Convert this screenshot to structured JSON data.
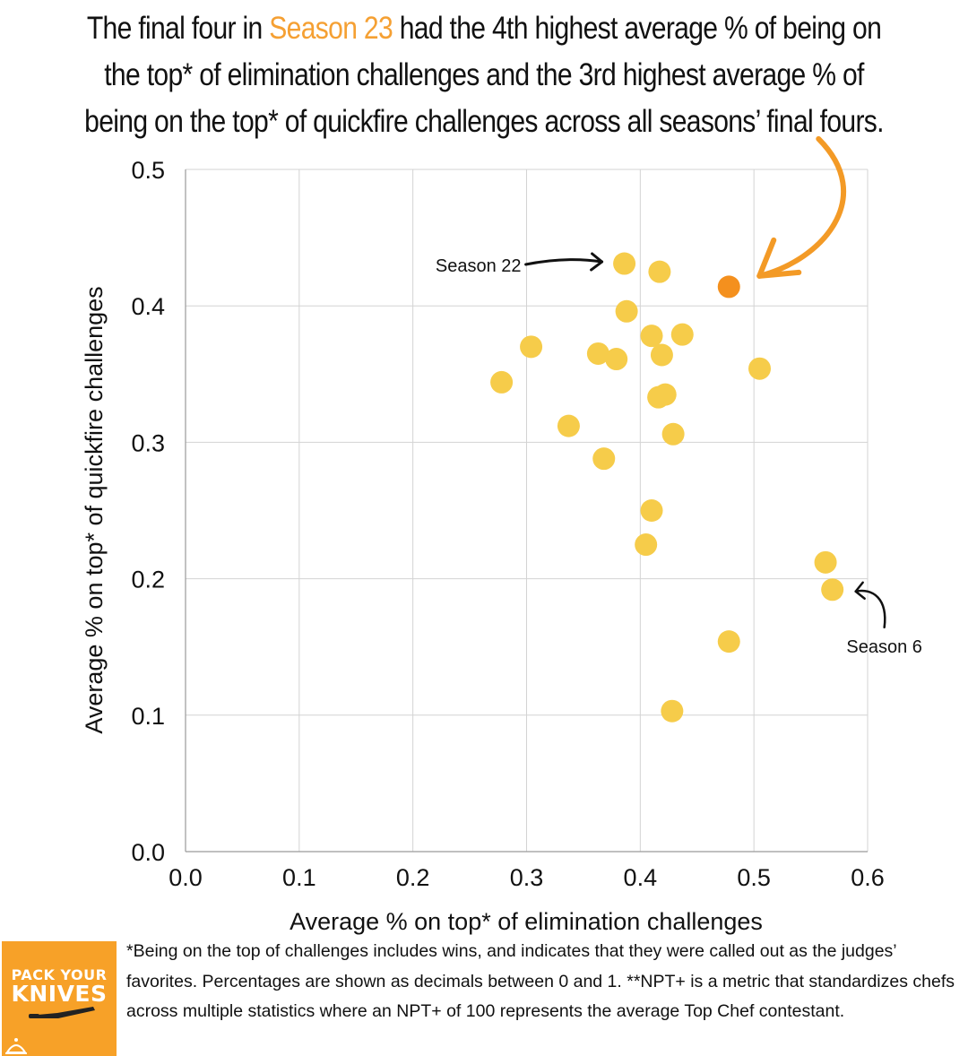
{
  "headline": {
    "part1": "The final four in ",
    "highlight": "Season 23",
    "part2": " had the 4th highest average % of being on the top* of elimination challenges and the 3rd highest average % of being on the top* of quickfire challenges across all seasons’ final fours."
  },
  "colors": {
    "highlight_point": "#f4901e",
    "point": "#f6cc4a",
    "arrow_highlight": "#f39a26",
    "grid": "#d3d3d3",
    "logo_background": "#f7a128"
  },
  "chart_data": {
    "type": "scatter",
    "xlabel": "Average % on top* of elimination challenges",
    "ylabel": "Average % on top* of quickfire challenges",
    "xlim": [
      0.0,
      0.6
    ],
    "ylim": [
      0.0,
      0.5
    ],
    "x_ticks": [
      "0.0",
      "0.1",
      "0.2",
      "0.3",
      "0.4",
      "0.5",
      "0.6"
    ],
    "y_ticks": [
      "0.0",
      "0.1",
      "0.2",
      "0.3",
      "0.4",
      "0.5"
    ],
    "grid": true,
    "points": [
      {
        "x": 0.278,
        "y": 0.344
      },
      {
        "x": 0.304,
        "y": 0.37
      },
      {
        "x": 0.337,
        "y": 0.312
      },
      {
        "x": 0.363,
        "y": 0.365
      },
      {
        "x": 0.368,
        "y": 0.288
      },
      {
        "x": 0.379,
        "y": 0.361
      },
      {
        "x": 0.386,
        "y": 0.431,
        "label": "Season 22"
      },
      {
        "x": 0.388,
        "y": 0.396
      },
      {
        "x": 0.405,
        "y": 0.225
      },
      {
        "x": 0.41,
        "y": 0.25
      },
      {
        "x": 0.41,
        "y": 0.378
      },
      {
        "x": 0.416,
        "y": 0.333
      },
      {
        "x": 0.417,
        "y": 0.425
      },
      {
        "x": 0.419,
        "y": 0.364
      },
      {
        "x": 0.422,
        "y": 0.335
      },
      {
        "x": 0.428,
        "y": 0.103
      },
      {
        "x": 0.429,
        "y": 0.306
      },
      {
        "x": 0.437,
        "y": 0.379
      },
      {
        "x": 0.478,
        "y": 0.154
      },
      {
        "x": 0.478,
        "y": 0.414,
        "highlight": true
      },
      {
        "x": 0.505,
        "y": 0.354
      },
      {
        "x": 0.563,
        "y": 0.212
      },
      {
        "x": 0.569,
        "y": 0.192,
        "label": "Season 6"
      }
    ]
  },
  "logo": {
    "line1": "PACK YOUR",
    "line2": "KNIVES"
  },
  "footnote": "*Being on the top of challenges includes wins, and indicates that they were called out as the judges’ favorites. Percentages are shown as decimals between 0 and 1. **NPT+ is a metric that standardizes chefs across multiple statistics where an NPT+ of 100 represents the average Top Chef contestant."
}
